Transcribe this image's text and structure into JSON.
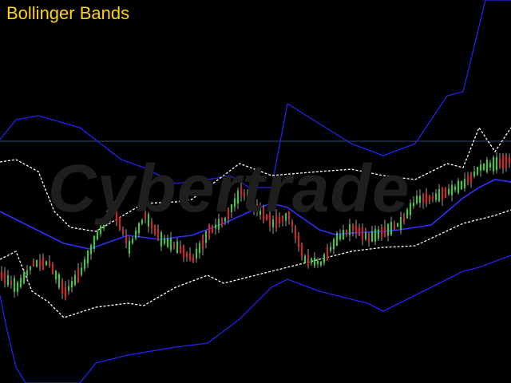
{
  "title": "Bollinger Bands",
  "watermark": "Cybertrade",
  "colors": {
    "background": "#000000",
    "title": "#ffd21a",
    "candle_up": "#2bd62b",
    "candle_down": "#e02020",
    "wick": "#9a9a9a",
    "outer_band": "#2222ee",
    "inner_band": "#ffffff",
    "middle_band": "#2f2fff",
    "reference_line": "#3a4a6a",
    "watermark": "#1e1e1e"
  },
  "chart_data": {
    "type": "line",
    "x_count": 160,
    "ylim": [
      0,
      480
    ],
    "reference_level": 303,
    "series": [
      {
        "key": "upper_outer",
        "style": "solid",
        "anchors": [
          [
            0,
            305
          ],
          [
            5,
            330
          ],
          [
            12,
            335
          ],
          [
            25,
            320
          ],
          [
            38,
            280
          ],
          [
            45,
            270
          ],
          [
            55,
            250
          ],
          [
            65,
            255
          ],
          [
            72,
            260
          ],
          [
            78,
            245
          ],
          [
            85,
            245
          ],
          [
            90,
            350
          ],
          [
            100,
            325
          ],
          [
            110,
            300
          ],
          [
            120,
            285
          ],
          [
            130,
            300
          ],
          [
            140,
            360
          ],
          [
            145,
            365
          ],
          [
            152,
            480
          ],
          [
            160,
            480
          ]
        ]
      },
      {
        "key": "upper_inner",
        "style": "dashed",
        "anchors": [
          [
            0,
            277
          ],
          [
            5,
            280
          ],
          [
            12,
            265
          ],
          [
            17,
            215
          ],
          [
            22,
            195
          ],
          [
            30,
            190
          ],
          [
            45,
            225
          ],
          [
            55,
            227
          ],
          [
            60,
            230
          ],
          [
            75,
            275
          ],
          [
            85,
            260
          ],
          [
            100,
            265
          ],
          [
            110,
            268
          ],
          [
            120,
            260
          ],
          [
            130,
            255
          ],
          [
            140,
            275
          ],
          [
            145,
            270
          ],
          [
            150,
            320
          ],
          [
            155,
            290
          ],
          [
            160,
            320
          ]
        ]
      },
      {
        "key": "middle",
        "style": "solid",
        "anchors": [
          [
            0,
            215
          ],
          [
            10,
            195
          ],
          [
            20,
            175
          ],
          [
            28,
            168
          ],
          [
            40,
            185
          ],
          [
            50,
            180
          ],
          [
            60,
            185
          ],
          [
            70,
            200
          ],
          [
            80,
            218
          ],
          [
            85,
            225
          ],
          [
            90,
            220
          ],
          [
            100,
            192
          ],
          [
            105,
            186
          ],
          [
            110,
            188
          ],
          [
            120,
            190
          ],
          [
            125,
            192
          ],
          [
            135,
            198
          ],
          [
            145,
            232
          ],
          [
            150,
            245
          ],
          [
            155,
            255
          ],
          [
            160,
            252
          ]
        ]
      },
      {
        "key": "lower_inner",
        "style": "dashed",
        "anchors": [
          [
            0,
            155
          ],
          [
            5,
            165
          ],
          [
            10,
            115
          ],
          [
            15,
            102
          ],
          [
            20,
            82
          ],
          [
            30,
            95
          ],
          [
            40,
            100
          ],
          [
            45,
            97
          ],
          [
            55,
            120
          ],
          [
            65,
            135
          ],
          [
            70,
            125
          ],
          [
            80,
            135
          ],
          [
            85,
            140
          ],
          [
            100,
            155
          ],
          [
            110,
            165
          ],
          [
            120,
            170
          ],
          [
            130,
            172
          ],
          [
            145,
            200
          ],
          [
            155,
            210
          ],
          [
            160,
            217
          ]
        ]
      },
      {
        "key": "lower_outer",
        "style": "solid",
        "anchors": [
          [
            0,
            110
          ],
          [
            2,
            70
          ],
          [
            5,
            20
          ],
          [
            8,
            0
          ],
          [
            25,
            0
          ],
          [
            30,
            25
          ],
          [
            40,
            35
          ],
          [
            55,
            45
          ],
          [
            65,
            50
          ],
          [
            75,
            80
          ],
          [
            85,
            120
          ],
          [
            90,
            130
          ],
          [
            100,
            115
          ],
          [
            115,
            100
          ],
          [
            120,
            90
          ],
          [
            135,
            120
          ],
          [
            145,
            140
          ],
          [
            150,
            145
          ],
          [
            160,
            160
          ]
        ]
      }
    ],
    "price_anchors": [
      [
        0,
        135
      ],
      [
        5,
        120
      ],
      [
        10,
        150
      ],
      [
        15,
        150
      ],
      [
        20,
        113
      ],
      [
        25,
        140
      ],
      [
        30,
        185
      ],
      [
        35,
        220
      ],
      [
        40,
        170
      ],
      [
        45,
        210
      ],
      [
        50,
        180
      ],
      [
        55,
        170
      ],
      [
        60,
        155
      ],
      [
        65,
        190
      ],
      [
        70,
        205
      ],
      [
        75,
        240
      ],
      [
        80,
        220
      ],
      [
        85,
        200
      ],
      [
        90,
        210
      ],
      [
        95,
        155
      ],
      [
        100,
        150
      ],
      [
        105,
        180
      ],
      [
        110,
        195
      ],
      [
        115,
        182
      ],
      [
        120,
        190
      ],
      [
        125,
        200
      ],
      [
        130,
        230
      ],
      [
        135,
        232
      ],
      [
        140,
        240
      ],
      [
        145,
        250
      ],
      [
        150,
        270
      ],
      [
        155,
        275
      ],
      [
        160,
        280
      ]
    ]
  }
}
